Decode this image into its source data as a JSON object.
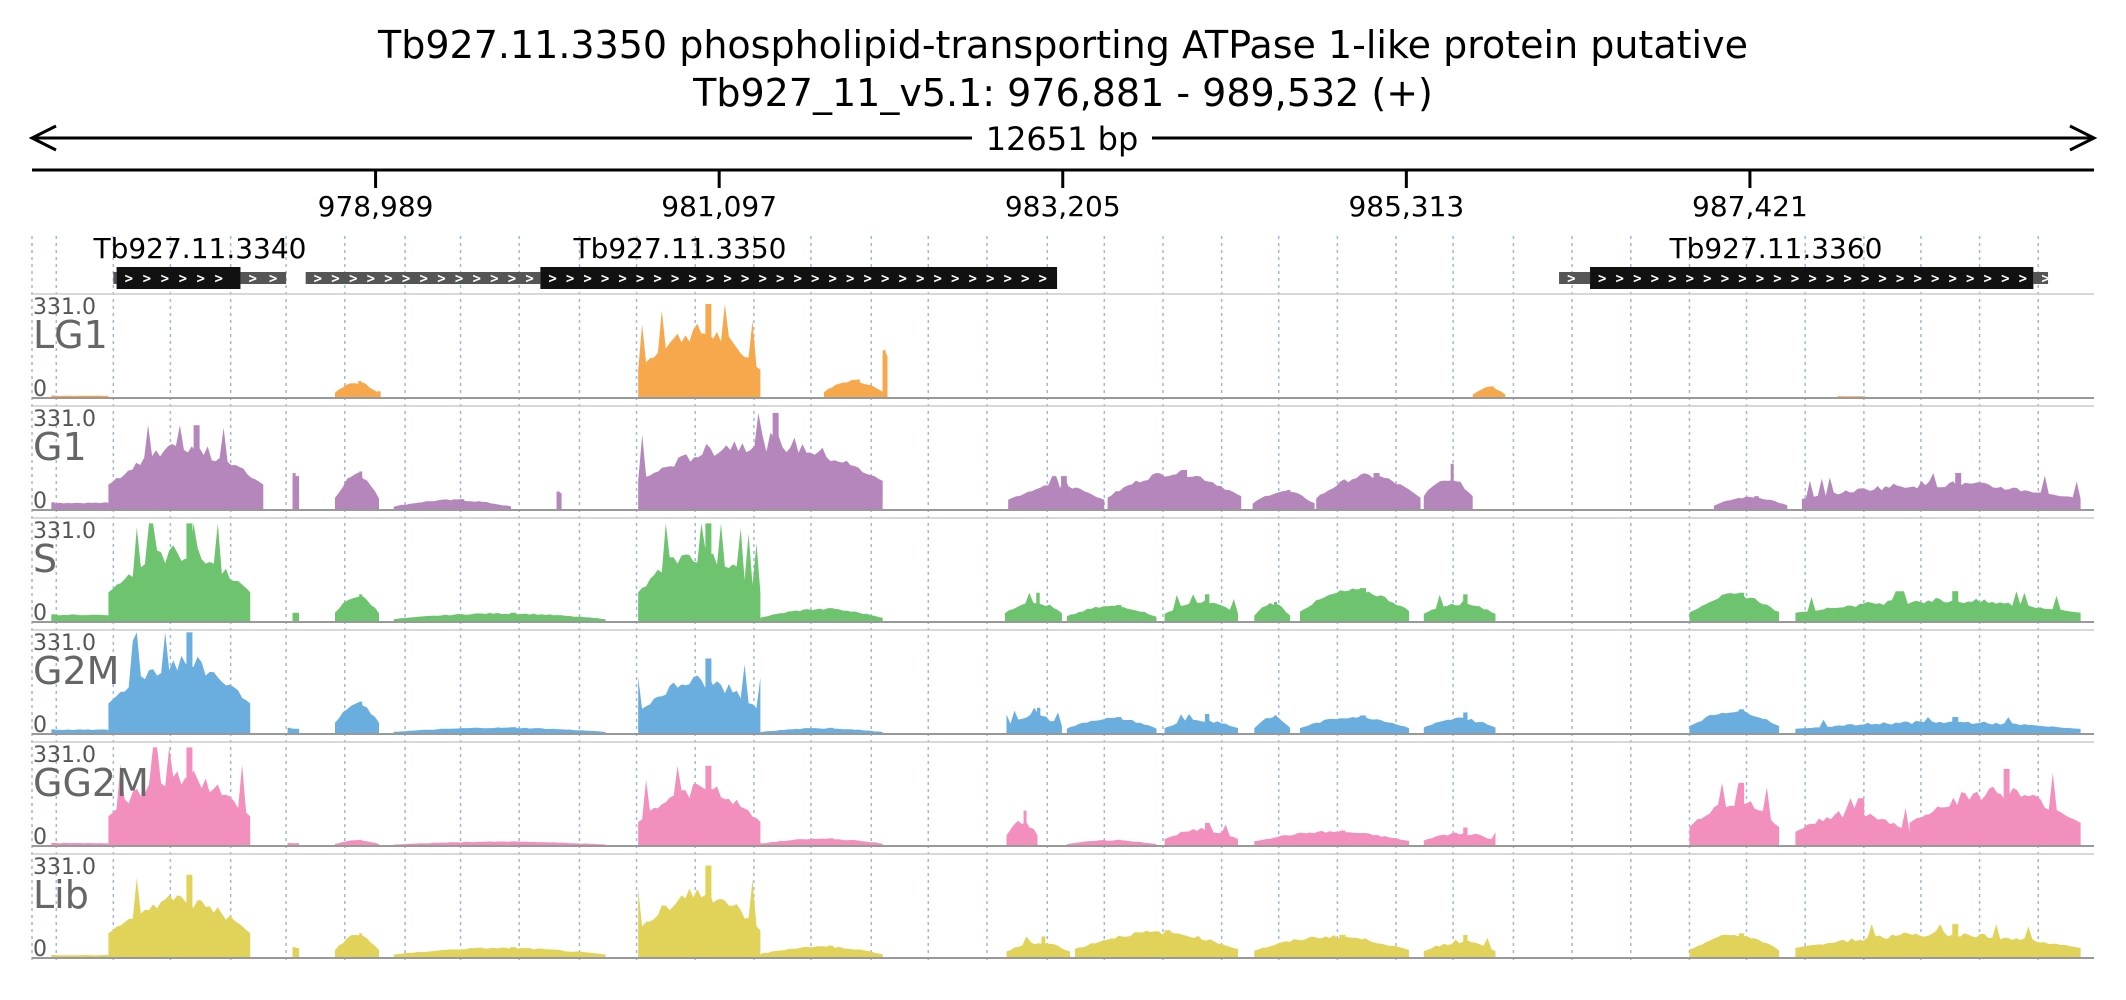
{
  "chart_data": {
    "type": "area",
    "title": "Tb927.11.3350  phospholipid-transporting ATPase 1-like protein  putative",
    "subtitle": "Tb927_11_v5.1: 976,881 - 989,532 (+)",
    "span_label": "12651 bp",
    "x_range": [
      976881,
      989532
    ],
    "ticks": [
      {
        "pos": 978989,
        "label": "978,989"
      },
      {
        "pos": 981097,
        "label": "981,097"
      },
      {
        "pos": 983205,
        "label": "983,205"
      },
      {
        "pos": 985313,
        "label": "985,313"
      },
      {
        "pos": 987421,
        "label": "987,421"
      }
    ],
    "genes": [
      {
        "name": "Tb927.11.3340",
        "utr5": [
          977380,
          977400
        ],
        "cds": [
          977400,
          978160
        ],
        "utr3": [
          978160,
          978440
        ]
      },
      {
        "name": "Tb927.11.3350",
        "utr5": [
          978560,
          980000
        ],
        "cds": [
          980000,
          983170
        ],
        "utr3": null
      },
      {
        "name": "Tb927.11.3360",
        "utr5": [
          986250,
          986440
        ],
        "cds": [
          986440,
          989160
        ],
        "utr3": [
          989160,
          989250
        ]
      }
    ],
    "gridlines": [
      977030,
      977380,
      977730,
      978100,
      978440,
      978800,
      979170,
      979510,
      979870,
      980240,
      980590,
      980950,
      981310,
      981660,
      982030,
      982380,
      982740,
      983110,
      983460,
      983820,
      984180,
      984530,
      984890,
      985250,
      985600,
      985970,
      986330,
      986690,
      987050,
      987400,
      987760,
      988120,
      988470,
      988830,
      989190
    ],
    "y_range": [
      0,
      331
    ],
    "scale_max_label": "331.0",
    "scale_min_label": "0",
    "series": [
      {
        "name": "LG1",
        "color": "#f8a84c",
        "blocks": [
          {
            "start": 977000,
            "end": 977350,
            "peak": 8,
            "shape": "flat"
          },
          {
            "start": 978740,
            "end": 979000,
            "peak": 55,
            "shape": "hump"
          },
          {
            "start": 979000,
            "end": 979020,
            "peak": 22,
            "shape": "flat"
          },
          {
            "start": 980600,
            "end": 981350,
            "peak": 305,
            "shape": "peaks"
          },
          {
            "start": 981740,
            "end": 982100,
            "peak": 60,
            "shape": "hump"
          },
          {
            "start": 982100,
            "end": 982130,
            "peak": 155,
            "shape": "flat"
          },
          {
            "start": 985720,
            "end": 985920,
            "peak": 38,
            "shape": "hump"
          },
          {
            "start": 987960,
            "end": 988130,
            "peak": 6,
            "shape": "flat"
          }
        ]
      },
      {
        "name": "G1",
        "color": "#b586bb",
        "blocks": [
          {
            "start": 977000,
            "end": 977350,
            "peak": 25,
            "shape": "flat"
          },
          {
            "start": 977350,
            "end": 978300,
            "peak": 275,
            "shape": "peaks"
          },
          {
            "start": 978480,
            "end": 978520,
            "peak": 120,
            "shape": "flat"
          },
          {
            "start": 978740,
            "end": 979010,
            "peak": 125,
            "shape": "hump"
          },
          {
            "start": 979100,
            "end": 979820,
            "peak": 35,
            "shape": "hump"
          },
          {
            "start": 980100,
            "end": 980130,
            "peak": 60,
            "shape": "flat"
          },
          {
            "start": 980600,
            "end": 982100,
            "peak": 315,
            "shape": "peaks"
          },
          {
            "start": 982870,
            "end": 983460,
            "peak": 110,
            "shape": "peaks"
          },
          {
            "start": 983480,
            "end": 984300,
            "peak": 130,
            "shape": "hump"
          },
          {
            "start": 984370,
            "end": 984750,
            "peak": 65,
            "shape": "hump"
          },
          {
            "start": 984760,
            "end": 985400,
            "peak": 120,
            "shape": "hump"
          },
          {
            "start": 985420,
            "end": 985720,
            "peak": 150,
            "shape": "peaks"
          },
          {
            "start": 987200,
            "end": 987650,
            "peak": 45,
            "shape": "hump"
          },
          {
            "start": 987740,
            "end": 989450,
            "peak": 120,
            "shape": "peaks"
          }
        ]
      },
      {
        "name": "S",
        "color": "#6ec46e",
        "blocks": [
          {
            "start": 977000,
            "end": 977350,
            "peak": 25,
            "shape": "flat"
          },
          {
            "start": 977350,
            "end": 978220,
            "peak": 320,
            "shape": "peaks"
          },
          {
            "start": 978480,
            "end": 978520,
            "peak": 30,
            "shape": "flat"
          },
          {
            "start": 978740,
            "end": 979010,
            "peak": 90,
            "shape": "hump"
          },
          {
            "start": 979100,
            "end": 980400,
            "peak": 30,
            "shape": "hump"
          },
          {
            "start": 980600,
            "end": 981350,
            "peak": 320,
            "shape": "peaks"
          },
          {
            "start": 981350,
            "end": 982100,
            "peak": 45,
            "shape": "hump"
          },
          {
            "start": 982850,
            "end": 983200,
            "peak": 95,
            "shape": "peaks"
          },
          {
            "start": 983230,
            "end": 983780,
            "peak": 55,
            "shape": "hump"
          },
          {
            "start": 983830,
            "end": 984280,
            "peak": 90,
            "shape": "peaks"
          },
          {
            "start": 984380,
            "end": 984600,
            "peak": 65,
            "shape": "hump"
          },
          {
            "start": 984660,
            "end": 985330,
            "peak": 110,
            "shape": "hump"
          },
          {
            "start": 985420,
            "end": 985860,
            "peak": 90,
            "shape": "peaks"
          },
          {
            "start": 987050,
            "end": 987600,
            "peak": 95,
            "shape": "hump"
          },
          {
            "start": 987700,
            "end": 989450,
            "peak": 100,
            "shape": "peaks"
          }
        ]
      },
      {
        "name": "G2M",
        "color": "#6aaedf",
        "blocks": [
          {
            "start": 977000,
            "end": 977350,
            "peak": 15,
            "shape": "flat"
          },
          {
            "start": 977350,
            "end": 978220,
            "peak": 330,
            "shape": "peaks"
          },
          {
            "start": 978450,
            "end": 978520,
            "peak": 20,
            "shape": "flat"
          },
          {
            "start": 978740,
            "end": 979010,
            "peak": 105,
            "shape": "hump"
          },
          {
            "start": 979100,
            "end": 980400,
            "peak": 22,
            "shape": "hump"
          },
          {
            "start": 980600,
            "end": 981350,
            "peak": 245,
            "shape": "peaks"
          },
          {
            "start": 981350,
            "end": 982100,
            "peak": 20,
            "shape": "hump"
          },
          {
            "start": 982860,
            "end": 983200,
            "peak": 85,
            "shape": "peaks"
          },
          {
            "start": 983230,
            "end": 983780,
            "peak": 55,
            "shape": "hump"
          },
          {
            "start": 983830,
            "end": 984280,
            "peak": 65,
            "shape": "peaks"
          },
          {
            "start": 984380,
            "end": 984600,
            "peak": 60,
            "shape": "hump"
          },
          {
            "start": 984660,
            "end": 985330,
            "peak": 60,
            "shape": "hump"
          },
          {
            "start": 985420,
            "end": 985860,
            "peak": 70,
            "shape": "peaks"
          },
          {
            "start": 987050,
            "end": 987600,
            "peak": 80,
            "shape": "hump"
          },
          {
            "start": 987700,
            "end": 989450,
            "peak": 55,
            "shape": "peaks"
          }
        ]
      },
      {
        "name": "GG2M",
        "color": "#f38fbd",
        "blocks": [
          {
            "start": 977000,
            "end": 977350,
            "peak": 10,
            "shape": "flat"
          },
          {
            "start": 977350,
            "end": 978220,
            "peak": 320,
            "shape": "peaks"
          },
          {
            "start": 978450,
            "end": 978520,
            "peak": 10,
            "shape": "flat"
          },
          {
            "start": 978740,
            "end": 979010,
            "peak": 20,
            "shape": "hump"
          },
          {
            "start": 979100,
            "end": 980400,
            "peak": 15,
            "shape": "hump"
          },
          {
            "start": 980600,
            "end": 981350,
            "peak": 260,
            "shape": "peaks"
          },
          {
            "start": 981350,
            "end": 982100,
            "peak": 25,
            "shape": "hump"
          },
          {
            "start": 982860,
            "end": 983050,
            "peak": 115,
            "shape": "peaks"
          },
          {
            "start": 983230,
            "end": 983780,
            "peak": 20,
            "shape": "hump"
          },
          {
            "start": 983830,
            "end": 984280,
            "peak": 75,
            "shape": "peaks"
          },
          {
            "start": 984380,
            "end": 985330,
            "peak": 50,
            "shape": "hump"
          },
          {
            "start": 985420,
            "end": 985860,
            "peak": 60,
            "shape": "peaks"
          },
          {
            "start": 987050,
            "end": 987600,
            "peak": 205,
            "shape": "peaks"
          },
          {
            "start": 987700,
            "end": 988400,
            "peak": 155,
            "shape": "peaks"
          },
          {
            "start": 988400,
            "end": 989450,
            "peak": 250,
            "shape": "peaks"
          }
        ]
      },
      {
        "name": "Lib",
        "color": "#e1d35a",
        "blocks": [
          {
            "start": 977000,
            "end": 977350,
            "peak": 10,
            "shape": "flat"
          },
          {
            "start": 977350,
            "end": 978220,
            "peak": 270,
            "shape": "peaks"
          },
          {
            "start": 978480,
            "end": 978520,
            "peak": 35,
            "shape": "flat"
          },
          {
            "start": 978740,
            "end": 979010,
            "peak": 80,
            "shape": "hump"
          },
          {
            "start": 979100,
            "end": 980400,
            "peak": 35,
            "shape": "hump"
          },
          {
            "start": 980600,
            "end": 981350,
            "peak": 300,
            "shape": "peaks"
          },
          {
            "start": 981350,
            "end": 982100,
            "peak": 40,
            "shape": "hump"
          },
          {
            "start": 982860,
            "end": 983250,
            "peak": 70,
            "shape": "peaks"
          },
          {
            "start": 983280,
            "end": 984280,
            "peak": 90,
            "shape": "hump"
          },
          {
            "start": 984380,
            "end": 985330,
            "peak": 75,
            "shape": "hump"
          },
          {
            "start": 985420,
            "end": 985860,
            "peak": 75,
            "shape": "peaks"
          },
          {
            "start": 987050,
            "end": 987600,
            "peak": 80,
            "shape": "hump"
          },
          {
            "start": 987700,
            "end": 989450,
            "peak": 110,
            "shape": "peaks"
          }
        ]
      }
    ]
  }
}
